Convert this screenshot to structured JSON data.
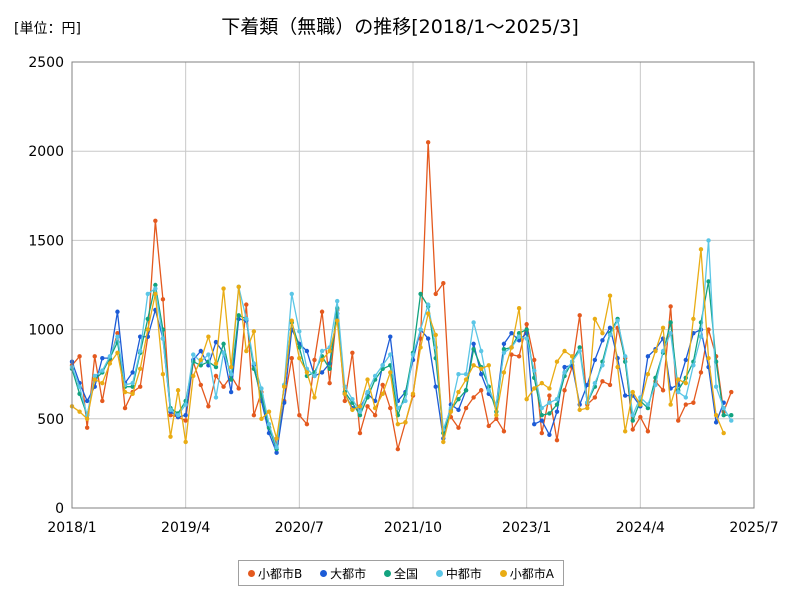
{
  "chart_data": {
    "type": "line",
    "title": "下着類（無職）の推移[2018/1～2025/3]",
    "unit_label": "[単位：円]",
    "ylim": [
      0,
      2500
    ],
    "yticks": [
      "0",
      "500",
      "1000",
      "1500",
      "2000",
      "2500"
    ],
    "xticks": [
      "2018/1",
      "2019/4",
      "2020/7",
      "2021/10",
      "2023/1",
      "2024/4",
      "2025/7"
    ],
    "x_start": "2018/1",
    "x_end": "2025/7",
    "grid": true,
    "legend_position": "bottom",
    "series": [
      {
        "name": "小都市B",
        "color": "#e4591e",
        "values": [
          800,
          850,
          450,
          850,
          600,
          830,
          980,
          560,
          650,
          680,
          960,
          1610,
          1170,
          520,
          510,
          490,
          820,
          690,
          570,
          740,
          680,
          740,
          670,
          1140,
          520,
          650,
          450,
          360,
          600,
          840,
          520,
          470,
          830,
          1100,
          700,
          1110,
          600,
          870,
          420,
          570,
          520,
          690,
          560,
          330,
          480,
          630,
          950,
          2050,
          1200,
          1260,
          510,
          450,
          560,
          620,
          660,
          460,
          500,
          430,
          860,
          850,
          1030,
          830,
          420,
          630,
          380,
          660,
          790,
          1080,
          580,
          620,
          710,
          690,
          1010,
          840,
          440,
          510,
          430,
          710,
          660,
          1130,
          490,
          580,
          590,
          760,
          1000,
          850,
          540,
          650
        ]
      },
      {
        "name": "大都市",
        "color": "#1c5bd6",
        "values": [
          820,
          700,
          600,
          680,
          840,
          840,
          1100,
          700,
          760,
          960,
          960,
          1110,
          950,
          540,
          510,
          520,
          830,
          880,
          800,
          930,
          870,
          650,
          1060,
          1050,
          800,
          600,
          420,
          310,
          590,
          1000,
          920,
          880,
          740,
          760,
          810,
          1090,
          640,
          560,
          560,
          640,
          600,
          800,
          960,
          600,
          650,
          830,
          1000,
          950,
          680,
          390,
          580,
          550,
          660,
          920,
          750,
          640,
          580,
          920,
          980,
          940,
          980,
          470,
          490,
          410,
          540,
          790,
          800,
          580,
          690,
          830,
          940,
          1010,
          840,
          630,
          630,
          570,
          850,
          890,
          950,
          670,
          690,
          830,
          980,
          1000,
          790,
          480,
          590
        ]
      },
      {
        "name": "全国",
        "color": "#12a37f",
        "values": [
          780,
          640,
          520,
          720,
          760,
          840,
          930,
          680,
          680,
          870,
          1060,
          1250,
          1000,
          560,
          530,
          600,
          820,
          800,
          820,
          790,
          920,
          720,
          1080,
          1060,
          780,
          630,
          450,
          330,
          690,
          1040,
          900,
          740,
          760,
          850,
          780,
          1120,
          650,
          590,
          520,
          620,
          720,
          780,
          800,
          520,
          640,
          870,
          1200,
          1130,
          840,
          420,
          550,
          610,
          660,
          890,
          790,
          680,
          540,
          890,
          900,
          980,
          1000,
          730,
          520,
          530,
          580,
          740,
          820,
          900,
          590,
          680,
          820,
          980,
          1060,
          820,
          490,
          600,
          560,
          730,
          870,
          1040,
          660,
          730,
          820,
          1040,
          1270,
          820,
          520,
          520
        ]
      },
      {
        "name": "中都市",
        "color": "#5bc6e6",
        "values": [
          790,
          680,
          520,
          740,
          770,
          850,
          960,
          690,
          700,
          880,
          1200,
          1230,
          950,
          550,
          520,
          580,
          860,
          820,
          860,
          620,
          870,
          750,
          1240,
          1060,
          810,
          670,
          470,
          340,
          690,
          1200,
          990,
          780,
          740,
          880,
          900,
          1160,
          680,
          610,
          540,
          650,
          740,
          800,
          860,
          560,
          600,
          860,
          1000,
          1140,
          900,
          440,
          560,
          750,
          750,
          1040,
          880,
          660,
          580,
          870,
          900,
          960,
          950,
          770,
          560,
          590,
          610,
          760,
          820,
          880,
          590,
          700,
          800,
          970,
          1050,
          850,
          520,
          620,
          580,
          690,
          880,
          980,
          650,
          620,
          800,
          960,
          1500,
          680,
          560,
          490
        ]
      },
      {
        "name": "小都市A",
        "color": "#e9ac14",
        "values": [
          570,
          540,
          500,
          720,
          700,
          810,
          870,
          650,
          640,
          780,
          1000,
          1200,
          750,
          400,
          660,
          370,
          740,
          830,
          960,
          810,
          1230,
          790,
          1240,
          880,
          990,
          500,
          540,
          390,
          680,
          1050,
          840,
          760,
          620,
          830,
          880,
          1050,
          640,
          550,
          570,
          720,
          560,
          640,
          760,
          470,
          480,
          640,
          900,
          1090,
          970,
          370,
          540,
          650,
          720,
          800,
          780,
          800,
          520,
          760,
          900,
          1120,
          610,
          670,
          700,
          670,
          820,
          880,
          850,
          550,
          560,
          1060,
          980,
          1190,
          790,
          430,
          650,
          580,
          750,
          880,
          1010,
          580,
          720,
          700,
          1060,
          1450,
          840,
          520,
          420
        ]
      }
    ]
  }
}
